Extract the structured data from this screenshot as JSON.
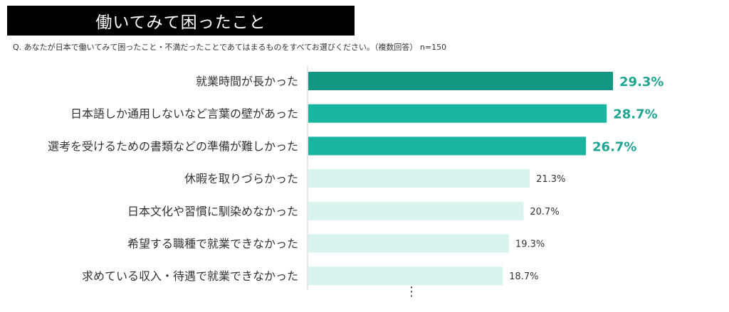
{
  "title": "働いてみて困ったこと",
  "question": "Q. あなたが日本で働いてみて困ったこと・不満だったことであてはまるものをすべてお選びください。（複数回答） n=150",
  "more_indicator": "⋮",
  "colors": {
    "top1": "#139783",
    "top": "#1ab5a1",
    "rest": "#d9f3ee",
    "highlight_label": "#1ea593",
    "label": "#333333",
    "axis": "#cccccc"
  },
  "chart_data": {
    "type": "bar",
    "orientation": "horizontal",
    "categories": [
      "就業時間が長かった",
      "日本語しか通用しないなど言葉の壁があった",
      "選考を受けるための書類などの準備が難しかった",
      "休暇を取りづらかった",
      "日本文化や習慣に馴染めなかった",
      "希望する職種で就業できなかった",
      "求めている収入・待遇で就業できなかった"
    ],
    "values": [
      29.3,
      28.7,
      26.7,
      21.3,
      20.7,
      19.3,
      18.7
    ],
    "value_labels": [
      "29.3%",
      "28.7%",
      "26.7%",
      "21.3%",
      "20.7%",
      "19.3%",
      "18.7%"
    ],
    "highlight_top": 3,
    "unit": "%"
  }
}
